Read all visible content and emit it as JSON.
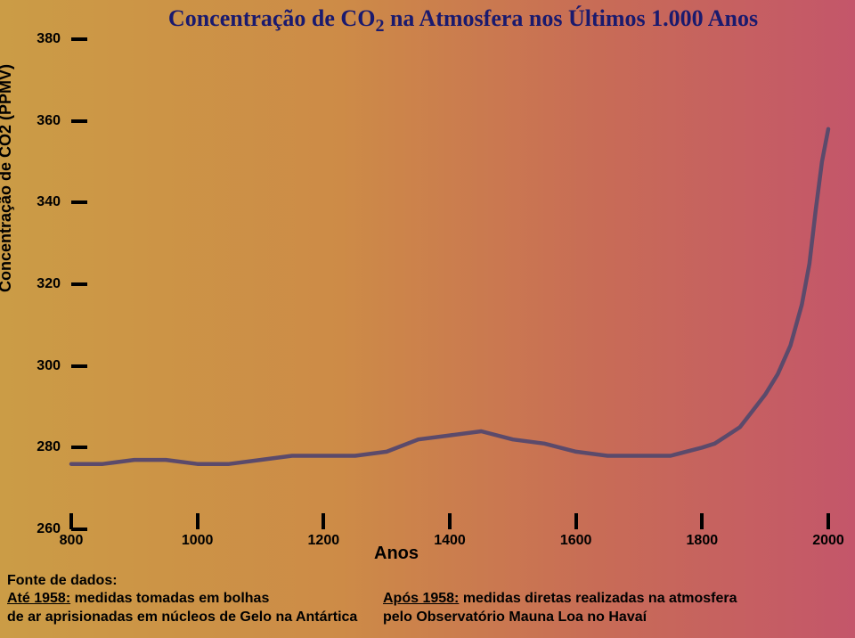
{
  "chart": {
    "type": "line",
    "title_pre": "Concentração de CO",
    "title_sub": "2",
    "title_post": " na Atmosfera nos Últimos 1.000 Anos",
    "title_color": "#1a1a6e",
    "title_fontsize": 26,
    "ylabel": "Concentração de CO2 (PPMV)",
    "xlabel": "Anos",
    "label_fontsize": 18,
    "tick_fontsize": 16,
    "tick_color": "#000000",
    "bg_gradient": [
      "#cb9c46",
      "#cd8b47",
      "#c86c56",
      "#c4566a"
    ],
    "line_color": "#5b4a6b",
    "line_width": 4.5,
    "xlim": [
      800,
      2000
    ],
    "ylim": [
      260,
      380
    ],
    "xticks": [
      800,
      1000,
      1200,
      1400,
      1600,
      1800,
      2000
    ],
    "yticks": [
      260,
      280,
      300,
      320,
      340,
      360,
      380
    ],
    "series_x": [
      800,
      850,
      900,
      950,
      1000,
      1050,
      1100,
      1150,
      1200,
      1250,
      1300,
      1350,
      1400,
      1450,
      1500,
      1550,
      1600,
      1650,
      1700,
      1750,
      1800,
      1820,
      1840,
      1860,
      1880,
      1900,
      1920,
      1940,
      1958,
      1970,
      1980,
      1990,
      2000
    ],
    "series_y": [
      276,
      276,
      277,
      277,
      276,
      276,
      277,
      278,
      278,
      278,
      279,
      282,
      283,
      284,
      282,
      281,
      279,
      278,
      278,
      278,
      280,
      281,
      283,
      285,
      289,
      293,
      298,
      305,
      315,
      325,
      338,
      350,
      358
    ]
  },
  "footer": {
    "left_line1": "Fonte de dados:",
    "left_line2_u": "Até 1958:",
    "left_line2_rest": " medidas tomadas em bolhas",
    "left_line3": "de ar aprisionadas em núcleos de Gelo na Antártica",
    "right_line1_u": "Após 1958:",
    "right_line1_rest": " medidas diretas realizadas na atmosfera",
    "right_line2": "pelo Observatório Mauna Loa no Havaí"
  }
}
